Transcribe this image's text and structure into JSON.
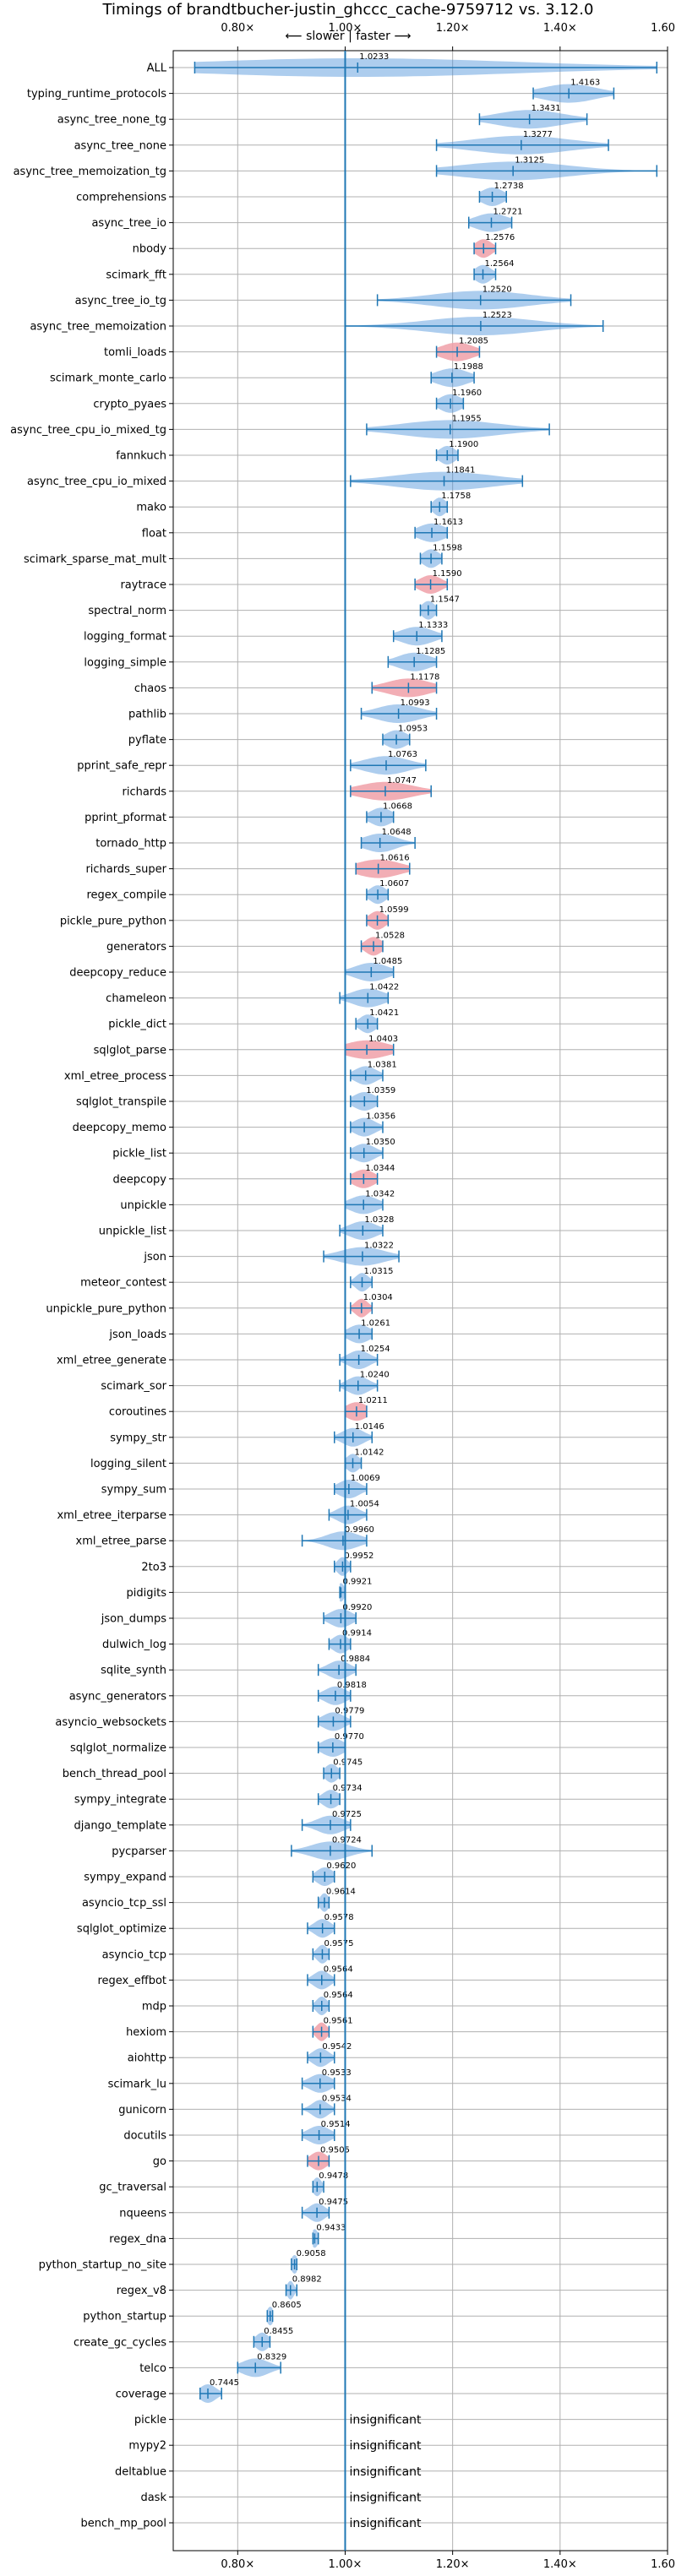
{
  "chart_data": {
    "type": "violin",
    "title": "Timings of brandtbucher-justin_ghccc_cache-9759712 vs. 3.12.0",
    "direction_label": "⟵ slower | faster ⟶",
    "xlim": [
      0.68,
      1.6
    ],
    "x_ticks": [
      {
        "value": 0.8,
        "label": "0.80×"
      },
      {
        "value": 1.0,
        "label": "1.00×"
      },
      {
        "value": 1.2,
        "label": "1.20×"
      },
      {
        "value": 1.4,
        "label": "1.40×"
      },
      {
        "value": 1.6,
        "label": "1.60×"
      }
    ],
    "reference_line": 1.0,
    "grid": true,
    "colors": {
      "normal": "#4a90d9",
      "significant": "#f0a0a8",
      "line": "#1f77b4"
    },
    "insignificant_label": "insignificant",
    "benchmarks": [
      {
        "name": "ALL",
        "value": 1.0233,
        "low": 0.72,
        "high": 1.58,
        "spread": 0.3,
        "sig": false,
        "vlabel": "1.0233"
      },
      {
        "name": "typing_runtime_protocols",
        "value": 1.4163,
        "low": 1.35,
        "high": 1.5,
        "spread": 0.05,
        "sig": false,
        "vlabel": "1.4163"
      },
      {
        "name": "async_tree_none_tg",
        "value": 1.3431,
        "low": 1.25,
        "high": 1.45,
        "spread": 0.06,
        "sig": false,
        "vlabel": "1.3431"
      },
      {
        "name": "async_tree_none",
        "value": 1.3277,
        "low": 1.17,
        "high": 1.49,
        "spread": 0.09,
        "sig": false,
        "vlabel": "1.3277"
      },
      {
        "name": "async_tree_memoization_tg",
        "value": 1.3125,
        "low": 1.17,
        "high": 1.58,
        "spread": 0.1,
        "sig": false,
        "vlabel": "1.3125"
      },
      {
        "name": "comprehensions",
        "value": 1.2738,
        "low": 1.25,
        "high": 1.3,
        "spread": 0.02,
        "sig": false,
        "vlabel": "1.2738"
      },
      {
        "name": "async_tree_io",
        "value": 1.2721,
        "low": 1.23,
        "high": 1.31,
        "spread": 0.03,
        "sig": false,
        "vlabel": "1.2721"
      },
      {
        "name": "nbody",
        "value": 1.2576,
        "low": 1.24,
        "high": 1.28,
        "spread": 0.015,
        "sig": true,
        "vlabel": "1.2576"
      },
      {
        "name": "scimark_fft",
        "value": 1.2564,
        "low": 1.24,
        "high": 1.28,
        "spread": 0.015,
        "sig": false,
        "vlabel": "1.2564"
      },
      {
        "name": "async_tree_io_tg",
        "value": 1.252,
        "low": 1.06,
        "high": 1.42,
        "spread": 0.09,
        "sig": false,
        "vlabel": "1.2520"
      },
      {
        "name": "async_tree_memoization",
        "value": 1.2523,
        "low": 1.0,
        "high": 1.48,
        "spread": 0.1,
        "sig": false,
        "vlabel": "1.2523"
      },
      {
        "name": "tomli_loads",
        "value": 1.2085,
        "low": 1.17,
        "high": 1.25,
        "spread": 0.03,
        "sig": true,
        "vlabel": "1.2085"
      },
      {
        "name": "scimark_monte_carlo",
        "value": 1.1988,
        "low": 1.16,
        "high": 1.24,
        "spread": 0.03,
        "sig": false,
        "vlabel": "1.1988"
      },
      {
        "name": "crypto_pyaes",
        "value": 1.196,
        "low": 1.17,
        "high": 1.22,
        "spread": 0.02,
        "sig": false,
        "vlabel": "1.1960"
      },
      {
        "name": "async_tree_cpu_io_mixed_tg",
        "value": 1.1955,
        "low": 1.04,
        "high": 1.38,
        "spread": 0.09,
        "sig": false,
        "vlabel": "1.1955"
      },
      {
        "name": "fannkuch",
        "value": 1.19,
        "low": 1.17,
        "high": 1.21,
        "spread": 0.015,
        "sig": false,
        "vlabel": "1.1900"
      },
      {
        "name": "async_tree_cpu_io_mixed",
        "value": 1.1841,
        "low": 1.01,
        "high": 1.33,
        "spread": 0.09,
        "sig": false,
        "vlabel": "1.1841"
      },
      {
        "name": "mako",
        "value": 1.1758,
        "low": 1.16,
        "high": 1.19,
        "spread": 0.012,
        "sig": false,
        "vlabel": "1.1758"
      },
      {
        "name": "float",
        "value": 1.1613,
        "low": 1.13,
        "high": 1.19,
        "spread": 0.025,
        "sig": false,
        "vlabel": "1.1613"
      },
      {
        "name": "scimark_sparse_mat_mult",
        "value": 1.1598,
        "low": 1.14,
        "high": 1.18,
        "spread": 0.015,
        "sig": false,
        "vlabel": "1.1598"
      },
      {
        "name": "raytrace",
        "value": 1.159,
        "low": 1.13,
        "high": 1.19,
        "spread": 0.02,
        "sig": true,
        "vlabel": "1.1590"
      },
      {
        "name": "spectral_norm",
        "value": 1.1547,
        "low": 1.14,
        "high": 1.17,
        "spread": 0.012,
        "sig": false,
        "vlabel": "1.1547"
      },
      {
        "name": "logging_format",
        "value": 1.1333,
        "low": 1.09,
        "high": 1.18,
        "spread": 0.03,
        "sig": false,
        "vlabel": "1.1333"
      },
      {
        "name": "logging_simple",
        "value": 1.1285,
        "low": 1.08,
        "high": 1.17,
        "spread": 0.03,
        "sig": false,
        "vlabel": "1.1285"
      },
      {
        "name": "chaos",
        "value": 1.1178,
        "low": 1.05,
        "high": 1.17,
        "spread": 0.04,
        "sig": true,
        "vlabel": "1.1178"
      },
      {
        "name": "pathlib",
        "value": 1.0993,
        "low": 1.03,
        "high": 1.17,
        "spread": 0.04,
        "sig": false,
        "vlabel": "1.0993"
      },
      {
        "name": "pyflate",
        "value": 1.0953,
        "low": 1.07,
        "high": 1.12,
        "spread": 0.02,
        "sig": false,
        "vlabel": "1.0953"
      },
      {
        "name": "pprint_safe_repr",
        "value": 1.0763,
        "low": 1.01,
        "high": 1.15,
        "spread": 0.04,
        "sig": false,
        "vlabel": "1.0763"
      },
      {
        "name": "richards",
        "value": 1.0747,
        "low": 1.01,
        "high": 1.16,
        "spread": 0.05,
        "sig": true,
        "vlabel": "1.0747"
      },
      {
        "name": "pprint_pformat",
        "value": 1.0668,
        "low": 1.04,
        "high": 1.09,
        "spread": 0.02,
        "sig": false,
        "vlabel": "1.0668"
      },
      {
        "name": "tornado_http",
        "value": 1.0648,
        "low": 1.03,
        "high": 1.13,
        "spread": 0.03,
        "sig": false,
        "vlabel": "1.0648"
      },
      {
        "name": "richards_super",
        "value": 1.0616,
        "low": 1.02,
        "high": 1.12,
        "spread": 0.04,
        "sig": true,
        "vlabel": "1.0616"
      },
      {
        "name": "regex_compile",
        "value": 1.0607,
        "low": 1.04,
        "high": 1.08,
        "spread": 0.015,
        "sig": false,
        "vlabel": "1.0607"
      },
      {
        "name": "pickle_pure_python",
        "value": 1.0599,
        "low": 1.04,
        "high": 1.08,
        "spread": 0.015,
        "sig": true,
        "vlabel": "1.0599"
      },
      {
        "name": "generators",
        "value": 1.0528,
        "low": 1.03,
        "high": 1.07,
        "spread": 0.015,
        "sig": true,
        "vlabel": "1.0528"
      },
      {
        "name": "deepcopy_reduce",
        "value": 1.0485,
        "low": 1.0,
        "high": 1.09,
        "spread": 0.03,
        "sig": false,
        "vlabel": "1.0485"
      },
      {
        "name": "chameleon",
        "value": 1.0422,
        "low": 0.99,
        "high": 1.08,
        "spread": 0.03,
        "sig": false,
        "vlabel": "1.0422"
      },
      {
        "name": "pickle_dict",
        "value": 1.0421,
        "low": 1.02,
        "high": 1.06,
        "spread": 0.015,
        "sig": false,
        "vlabel": "1.0421"
      },
      {
        "name": "sqlglot_parse",
        "value": 1.0403,
        "low": 1.0,
        "high": 1.09,
        "spread": 0.04,
        "sig": true,
        "vlabel": "1.0403"
      },
      {
        "name": "xml_etree_process",
        "value": 1.0381,
        "low": 1.01,
        "high": 1.07,
        "spread": 0.02,
        "sig": false,
        "vlabel": "1.0381"
      },
      {
        "name": "sqlglot_transpile",
        "value": 1.0359,
        "low": 1.01,
        "high": 1.06,
        "spread": 0.02,
        "sig": false,
        "vlabel": "1.0359"
      },
      {
        "name": "deepcopy_memo",
        "value": 1.0356,
        "low": 1.01,
        "high": 1.07,
        "spread": 0.02,
        "sig": false,
        "vlabel": "1.0356"
      },
      {
        "name": "pickle_list",
        "value": 1.035,
        "low": 1.01,
        "high": 1.07,
        "spread": 0.02,
        "sig": false,
        "vlabel": "1.0350"
      },
      {
        "name": "deepcopy",
        "value": 1.0344,
        "low": 1.01,
        "high": 1.06,
        "spread": 0.02,
        "sig": true,
        "vlabel": "1.0344"
      },
      {
        "name": "unpickle",
        "value": 1.0342,
        "low": 1.0,
        "high": 1.07,
        "spread": 0.025,
        "sig": false,
        "vlabel": "1.0342"
      },
      {
        "name": "unpickle_list",
        "value": 1.0328,
        "low": 0.99,
        "high": 1.07,
        "spread": 0.025,
        "sig": false,
        "vlabel": "1.0328"
      },
      {
        "name": "json",
        "value": 1.0322,
        "low": 0.96,
        "high": 1.1,
        "spread": 0.04,
        "sig": false,
        "vlabel": "1.0322"
      },
      {
        "name": "meteor_contest",
        "value": 1.0315,
        "low": 1.01,
        "high": 1.05,
        "spread": 0.012,
        "sig": false,
        "vlabel": "1.0315"
      },
      {
        "name": "unpickle_pure_python",
        "value": 1.0304,
        "low": 1.01,
        "high": 1.05,
        "spread": 0.012,
        "sig": true,
        "vlabel": "1.0304"
      },
      {
        "name": "json_loads",
        "value": 1.0261,
        "low": 1.0,
        "high": 1.05,
        "spread": 0.02,
        "sig": false,
        "vlabel": "1.0261"
      },
      {
        "name": "xml_etree_generate",
        "value": 1.0254,
        "low": 0.99,
        "high": 1.06,
        "spread": 0.02,
        "sig": false,
        "vlabel": "1.0254"
      },
      {
        "name": "scimark_sor",
        "value": 1.024,
        "low": 0.99,
        "high": 1.06,
        "spread": 0.02,
        "sig": false,
        "vlabel": "1.0240"
      },
      {
        "name": "coroutines",
        "value": 1.0211,
        "low": 1.0,
        "high": 1.04,
        "spread": 0.02,
        "sig": true,
        "vlabel": "1.0211"
      },
      {
        "name": "sympy_str",
        "value": 1.0146,
        "low": 0.98,
        "high": 1.05,
        "spread": 0.02,
        "sig": false,
        "vlabel": "1.0146"
      },
      {
        "name": "logging_silent",
        "value": 1.0142,
        "low": 1.0,
        "high": 1.03,
        "spread": 0.012,
        "sig": false,
        "vlabel": "1.0142"
      },
      {
        "name": "sympy_sum",
        "value": 1.0069,
        "low": 0.98,
        "high": 1.04,
        "spread": 0.02,
        "sig": false,
        "vlabel": "1.0069"
      },
      {
        "name": "xml_etree_iterparse",
        "value": 1.0054,
        "low": 0.97,
        "high": 1.04,
        "spread": 0.02,
        "sig": false,
        "vlabel": "1.0054"
      },
      {
        "name": "xml_etree_parse",
        "value": 0.996,
        "low": 0.92,
        "high": 1.04,
        "spread": 0.03,
        "sig": false,
        "vlabel": "0.9960"
      },
      {
        "name": "2to3",
        "value": 0.9952,
        "low": 0.98,
        "high": 1.01,
        "spread": 0.01,
        "sig": false,
        "vlabel": "0.9952"
      },
      {
        "name": "pidigits",
        "value": 0.9921,
        "low": 0.99,
        "high": 1.0,
        "spread": 0.006,
        "sig": false,
        "vlabel": "0.9921"
      },
      {
        "name": "json_dumps",
        "value": 0.992,
        "low": 0.96,
        "high": 1.02,
        "spread": 0.02,
        "sig": false,
        "vlabel": "0.9920"
      },
      {
        "name": "dulwich_log",
        "value": 0.9914,
        "low": 0.97,
        "high": 1.01,
        "spread": 0.015,
        "sig": false,
        "vlabel": "0.9914"
      },
      {
        "name": "sqlite_synth",
        "value": 0.9884,
        "low": 0.95,
        "high": 1.02,
        "spread": 0.02,
        "sig": false,
        "vlabel": "0.9884"
      },
      {
        "name": "async_generators",
        "value": 0.9818,
        "low": 0.95,
        "high": 1.01,
        "spread": 0.02,
        "sig": false,
        "vlabel": "0.9818"
      },
      {
        "name": "asyncio_websockets",
        "value": 0.9779,
        "low": 0.95,
        "high": 1.01,
        "spread": 0.02,
        "sig": false,
        "vlabel": "0.9779"
      },
      {
        "name": "sqlglot_normalize",
        "value": 0.977,
        "low": 0.95,
        "high": 1.0,
        "spread": 0.02,
        "sig": false,
        "vlabel": "0.9770"
      },
      {
        "name": "bench_thread_pool",
        "value": 0.9745,
        "low": 0.96,
        "high": 0.99,
        "spread": 0.012,
        "sig": false,
        "vlabel": "0.9745"
      },
      {
        "name": "sympy_integrate",
        "value": 0.9734,
        "low": 0.95,
        "high": 0.99,
        "spread": 0.015,
        "sig": false,
        "vlabel": "0.9734"
      },
      {
        "name": "django_template",
        "value": 0.9725,
        "low": 0.92,
        "high": 1.01,
        "spread": 0.025,
        "sig": false,
        "vlabel": "0.9725"
      },
      {
        "name": "pycparser",
        "value": 0.9724,
        "low": 0.9,
        "high": 1.05,
        "spread": 0.035,
        "sig": false,
        "vlabel": "0.9724"
      },
      {
        "name": "sympy_expand",
        "value": 0.962,
        "low": 0.94,
        "high": 0.98,
        "spread": 0.015,
        "sig": false,
        "vlabel": "0.9620"
      },
      {
        "name": "asyncio_tcp_ssl",
        "value": 0.9614,
        "low": 0.95,
        "high": 0.97,
        "spread": 0.008,
        "sig": false,
        "vlabel": "0.9614"
      },
      {
        "name": "sqlglot_optimize",
        "value": 0.9578,
        "low": 0.93,
        "high": 0.98,
        "spread": 0.015,
        "sig": false,
        "vlabel": "0.9578"
      },
      {
        "name": "asyncio_tcp",
        "value": 0.9575,
        "low": 0.94,
        "high": 0.97,
        "spread": 0.01,
        "sig": false,
        "vlabel": "0.9575"
      },
      {
        "name": "regex_effbot",
        "value": 0.9564,
        "low": 0.93,
        "high": 0.98,
        "spread": 0.015,
        "sig": false,
        "vlabel": "0.9564"
      },
      {
        "name": "mdp",
        "value": 0.9564,
        "low": 0.94,
        "high": 0.97,
        "spread": 0.01,
        "sig": false,
        "vlabel": "0.9564"
      },
      {
        "name": "hexiom",
        "value": 0.9561,
        "low": 0.94,
        "high": 0.97,
        "spread": 0.01,
        "sig": true,
        "vlabel": "0.9561"
      },
      {
        "name": "aiohttp",
        "value": 0.9542,
        "low": 0.93,
        "high": 0.98,
        "spread": 0.015,
        "sig": false,
        "vlabel": "0.9542"
      },
      {
        "name": "scimark_lu",
        "value": 0.9533,
        "low": 0.92,
        "high": 0.98,
        "spread": 0.02,
        "sig": false,
        "vlabel": "0.9533"
      },
      {
        "name": "gunicorn",
        "value": 0.9534,
        "low": 0.92,
        "high": 0.98,
        "spread": 0.015,
        "sig": false,
        "vlabel": "0.9534"
      },
      {
        "name": "docutils",
        "value": 0.9514,
        "low": 0.92,
        "high": 0.98,
        "spread": 0.02,
        "sig": false,
        "vlabel": "0.9514"
      },
      {
        "name": "go",
        "value": 0.9505,
        "low": 0.93,
        "high": 0.97,
        "spread": 0.015,
        "sig": true,
        "vlabel": "0.9505"
      },
      {
        "name": "gc_traversal",
        "value": 0.9478,
        "low": 0.94,
        "high": 0.96,
        "spread": 0.008,
        "sig": false,
        "vlabel": "0.9478"
      },
      {
        "name": "nqueens",
        "value": 0.9475,
        "low": 0.92,
        "high": 0.97,
        "spread": 0.015,
        "sig": false,
        "vlabel": "0.9475"
      },
      {
        "name": "regex_dna",
        "value": 0.9433,
        "low": 0.94,
        "high": 0.95,
        "spread": 0.006,
        "sig": false,
        "vlabel": "0.9433"
      },
      {
        "name": "python_startup_no_site",
        "value": 0.9058,
        "low": 0.9,
        "high": 0.91,
        "spread": 0.005,
        "sig": false,
        "vlabel": "0.9058"
      },
      {
        "name": "regex_v8",
        "value": 0.8982,
        "low": 0.89,
        "high": 0.91,
        "spread": 0.006,
        "sig": false,
        "vlabel": "0.8982"
      },
      {
        "name": "python_startup",
        "value": 0.8605,
        "low": 0.855,
        "high": 0.865,
        "spread": 0.004,
        "sig": false,
        "vlabel": "0.8605"
      },
      {
        "name": "create_gc_cycles",
        "value": 0.8455,
        "low": 0.83,
        "high": 0.86,
        "spread": 0.012,
        "sig": false,
        "vlabel": "0.8455"
      },
      {
        "name": "telco",
        "value": 0.8329,
        "low": 0.8,
        "high": 0.88,
        "spread": 0.025,
        "sig": false,
        "vlabel": "0.8329"
      },
      {
        "name": "coverage",
        "value": 0.7445,
        "low": 0.73,
        "high": 0.77,
        "spread": 0.015,
        "sig": false,
        "vlabel": "0.7445"
      },
      {
        "name": "pickle",
        "insignificant": true
      },
      {
        "name": "mypy2",
        "insignificant": true
      },
      {
        "name": "deltablue",
        "insignificant": true
      },
      {
        "name": "dask",
        "insignificant": true
      },
      {
        "name": "bench_mp_pool",
        "insignificant": true
      }
    ]
  }
}
